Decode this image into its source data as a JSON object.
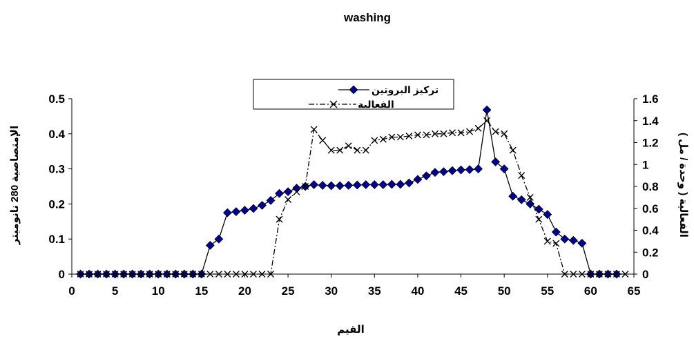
{
  "chart_data": {
    "type": "line",
    "title": "washing",
    "xlabel": "القيم",
    "ylabel_left": "الإمتصاصية 280 نانوميتر",
    "ylabel_right": "الفعالية ( وحدة / مل )",
    "xlim": [
      0,
      65
    ],
    "ylim_left": [
      0,
      0.5
    ],
    "ylim_right": [
      0,
      1.6
    ],
    "x_ticks": [
      0,
      5,
      10,
      15,
      20,
      25,
      30,
      35,
      40,
      45,
      50,
      55,
      60,
      65
    ],
    "y_left_ticks": [
      0,
      0.1,
      0.2,
      0.3,
      0.4,
      0.5
    ],
    "y_right_ticks": [
      0,
      0.2,
      0.4,
      0.6,
      0.8,
      1,
      1.2,
      1.4,
      1.6
    ],
    "grid": false,
    "legend_position": "top-center",
    "series": [
      {
        "name": "تركيز البروتين",
        "axis": "left",
        "color": "#00008B",
        "marker": "diamond",
        "line_style": "solid",
        "x": [
          1,
          2,
          3,
          4,
          5,
          6,
          7,
          8,
          9,
          10,
          11,
          12,
          13,
          14,
          15,
          16,
          17,
          18,
          19,
          20,
          21,
          22,
          23,
          24,
          25,
          26,
          27,
          28,
          29,
          30,
          31,
          32,
          33,
          34,
          35,
          36,
          37,
          38,
          39,
          40,
          41,
          42,
          43,
          44,
          45,
          46,
          47,
          48,
          49,
          50,
          51,
          52,
          53,
          54,
          55,
          56,
          57,
          58,
          59,
          60,
          61,
          62,
          63
        ],
        "values": [
          0,
          0,
          0,
          0,
          0,
          0,
          0,
          0,
          0,
          0,
          0,
          0,
          0,
          0,
          0,
          0.082,
          0.1,
          0.175,
          0.178,
          0.182,
          0.187,
          0.196,
          0.21,
          0.23,
          0.235,
          0.245,
          0.25,
          0.255,
          0.253,
          0.252,
          0.252,
          0.253,
          0.254,
          0.255,
          0.255,
          0.255,
          0.256,
          0.256,
          0.26,
          0.27,
          0.28,
          0.29,
          0.292,
          0.295,
          0.297,
          0.298,
          0.3,
          0.468,
          0.32,
          0.3,
          0.222,
          0.212,
          0.2,
          0.185,
          0.17,
          0.12,
          0.1,
          0.096,
          0.088,
          0,
          0,
          0,
          0
        ]
      },
      {
        "name": "الفعالية",
        "axis": "right",
        "color": "#000000",
        "marker": "x",
        "line_style": "dash-dot",
        "x": [
          1,
          2,
          3,
          4,
          5,
          6,
          7,
          8,
          9,
          10,
          11,
          12,
          13,
          14,
          15,
          16,
          17,
          18,
          19,
          20,
          21,
          22,
          23,
          24,
          25,
          26,
          27,
          28,
          29,
          30,
          31,
          32,
          33,
          34,
          35,
          36,
          37,
          38,
          39,
          40,
          41,
          42,
          43,
          44,
          45,
          46,
          47,
          48,
          49,
          50,
          51,
          52,
          53,
          54,
          55,
          56,
          57,
          58,
          59,
          60,
          61,
          62,
          63,
          64
        ],
        "values": [
          0,
          0,
          0,
          0,
          0,
          0,
          0,
          0,
          0,
          0,
          0,
          0,
          0,
          0,
          0,
          0,
          0,
          0,
          0,
          0,
          0,
          0,
          0,
          0.5,
          0.68,
          0.75,
          0.8,
          1.32,
          1.22,
          1.13,
          1.13,
          1.17,
          1.13,
          1.13,
          1.22,
          1.23,
          1.25,
          1.25,
          1.26,
          1.27,
          1.27,
          1.28,
          1.28,
          1.29,
          1.29,
          1.3,
          1.33,
          1.4,
          1.3,
          1.28,
          1.13,
          0.9,
          0.7,
          0.5,
          0.3,
          0.28,
          0,
          0,
          0,
          0,
          0,
          0,
          0,
          0
        ]
      }
    ]
  }
}
